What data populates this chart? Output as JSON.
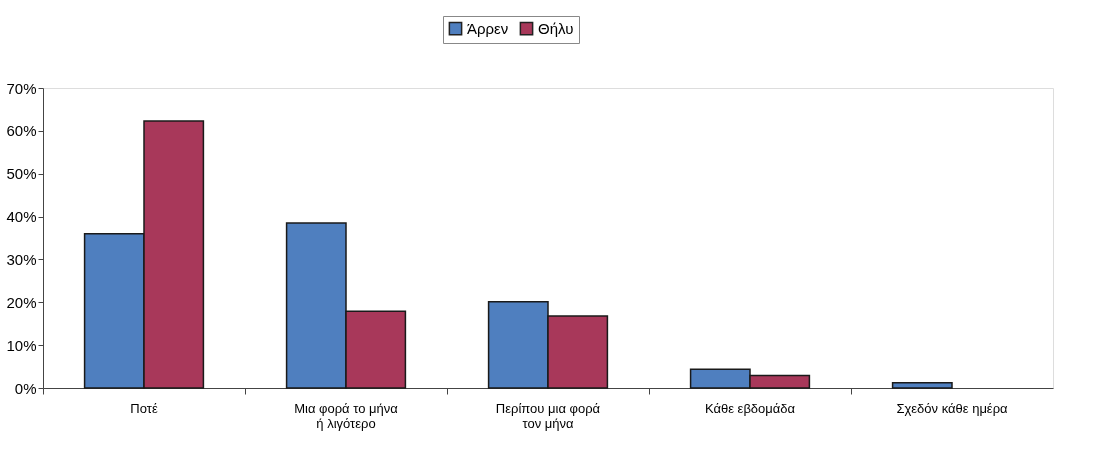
{
  "chart_data": {
    "type": "bar",
    "categories": [
      "Ποτέ",
      "Μια φορά το μήνα\nή λιγότερο",
      "Περίπου μια φορά\nτον μήνα",
      "Κάθε εβδομάδα",
      "Σχεδόν κάθε ημέρα"
    ],
    "series": [
      {
        "name": "Άρρεν",
        "color": "#4f7fbf",
        "values": [
          36.0,
          38.5,
          20.1,
          4.4,
          1.2
        ]
      },
      {
        "name": "Θήλυ",
        "color": "#a8385a",
        "values": [
          62.3,
          17.9,
          16.8,
          2.9,
          null
        ]
      }
    ],
    "ylim": [
      0,
      70
    ],
    "yticks": [
      {
        "value": 0,
        "label": "0%"
      },
      {
        "value": 10,
        "label": "10%"
      },
      {
        "value": 20,
        "label": "20%"
      },
      {
        "value": 30,
        "label": "30%"
      },
      {
        "value": 40,
        "label": "40%"
      },
      {
        "value": 50,
        "label": "50%"
      },
      {
        "value": 60,
        "label": "60%"
      },
      {
        "value": 70,
        "label": "70%"
      }
    ],
    "grid": false,
    "legend": "top"
  }
}
